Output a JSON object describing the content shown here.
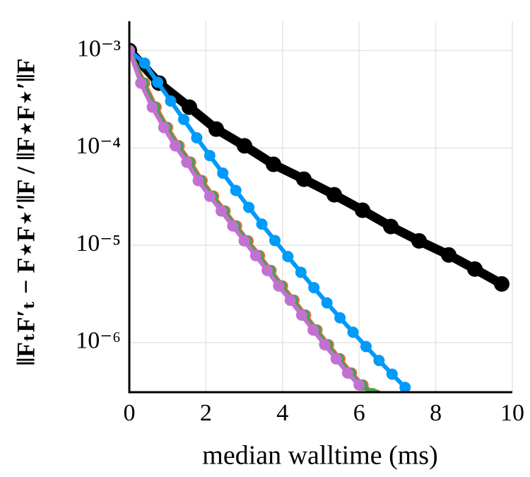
{
  "chart_data": {
    "type": "line",
    "xlabel": "median walltime (ms)",
    "ylabel": "‖FₜF′ₜ − F⋆F⋆′‖F / ‖F⋆F⋆′‖F",
    "xlim": [
      0,
      10
    ],
    "ylim": [
      3.1e-07,
      0.002
    ],
    "ylog": true,
    "grid": true,
    "xticks": [
      0,
      2,
      4,
      6,
      8,
      10
    ],
    "yticks": [
      {
        "value": 0.001,
        "label": "10⁻³"
      },
      {
        "value": 0.0001,
        "label": "10⁻⁴"
      },
      {
        "value": 1e-05,
        "label": "10⁻⁵"
      },
      {
        "value": 1e-06,
        "label": "10⁻⁶"
      }
    ],
    "series": [
      {
        "color": "#000000",
        "width": "thick",
        "x": [
          0,
          0.775,
          1.568,
          2.269,
          3.007,
          3.764,
          4.557,
          5.351,
          6.089,
          6.827,
          7.565,
          8.339,
          9.022,
          9.723
        ],
        "values": [
          0.001,
          0.000463,
          0.000262,
          0.000156,
          0.000105,
          6.78e-05,
          4.77e-05,
          3.3e-05,
          2.29e-05,
          1.56e-05,
          1.11e-05,
          7.96e-06,
          5.7e-06,
          4.01e-06
        ]
      },
      {
        "color": "#009af9",
        "width": "normal",
        "x": [
          0,
          0.4,
          0.74,
          1.08,
          1.42,
          1.76,
          2.1,
          2.44,
          2.78,
          3.12,
          3.46,
          3.8,
          4.14,
          4.48,
          4.82,
          5.16,
          5.5,
          5.84,
          6.18,
          6.52,
          6.86,
          7.2
        ],
        "values": [
          0.001,
          0.000741,
          0.000472,
          0.000303,
          0.000196,
          0.000127,
          8.34e-05,
          5.51e-05,
          3.66e-05,
          2.45e-05,
          1.65e-05,
          1.12e-05,
          7.67e-06,
          5.28e-06,
          3.67e-06,
          2.56e-06,
          1.8e-06,
          1.28e-06,
          9.12e-07,
          6.56e-07,
          4.75e-07,
          3.47e-07
        ]
      },
      {
        "color": "#e26f46",
        "width": "normal",
        "x": [
          0,
          0.4,
          0.7,
          1.0,
          1.3,
          1.6,
          1.9,
          2.2,
          2.5,
          2.8,
          3.1,
          3.4,
          3.7,
          4.0,
          4.3,
          4.6,
          4.9,
          5.2,
          5.5,
          5.8,
          6.1,
          6.45
        ],
        "values": [
          0.001,
          0.000463,
          0.000262,
          0.000162,
          0.000105,
          7.13e-05,
          4.61e-05,
          3.19e-05,
          2.25e-05,
          1.58e-05,
          1.11e-05,
          7.83e-06,
          5.51e-06,
          3.82e-06,
          2.73e-06,
          1.92e-06,
          1.35e-06,
          9.52e-07,
          6.82e-07,
          4.88e-07,
          3.67e-07,
          2.9e-07
        ]
      },
      {
        "color": "#3ea44e",
        "width": "normal",
        "x": [
          0,
          0.36,
          0.66,
          0.96,
          1.26,
          1.56,
          1.86,
          2.16,
          2.46,
          2.76,
          3.06,
          3.36,
          3.66,
          3.96,
          4.26,
          4.56,
          4.86,
          5.16,
          5.46,
          5.76,
          6.06,
          6.35
        ],
        "values": [
          0.001,
          0.000463,
          0.000262,
          0.000162,
          0.000105,
          7.13e-05,
          4.61e-05,
          3.19e-05,
          2.25e-05,
          1.58e-05,
          1.11e-05,
          7.83e-06,
          5.51e-06,
          3.82e-06,
          2.73e-06,
          1.92e-06,
          1.35e-06,
          9.52e-07,
          6.82e-07,
          4.88e-07,
          3.67e-07,
          3e-07
        ]
      },
      {
        "color": "#c271d2",
        "width": "normal",
        "x": [
          0,
          0.3,
          0.6,
          0.9,
          1.2,
          1.5,
          1.8,
          2.1,
          2.4,
          2.7,
          3.0,
          3.3,
          3.6,
          3.9,
          4.2,
          4.5,
          4.8,
          5.1,
          5.4,
          5.7,
          6.0
        ],
        "values": [
          0.001,
          0.000463,
          0.000262,
          0.000162,
          0.000105,
          7.13e-05,
          4.61e-05,
          3.19e-05,
          2.25e-05,
          1.58e-05,
          1.11e-05,
          7.83e-06,
          5.51e-06,
          3.82e-06,
          2.73e-06,
          1.92e-06,
          1.35e-06,
          9.52e-07,
          6.82e-07,
          4.88e-07,
          3.67e-07
        ]
      }
    ]
  }
}
